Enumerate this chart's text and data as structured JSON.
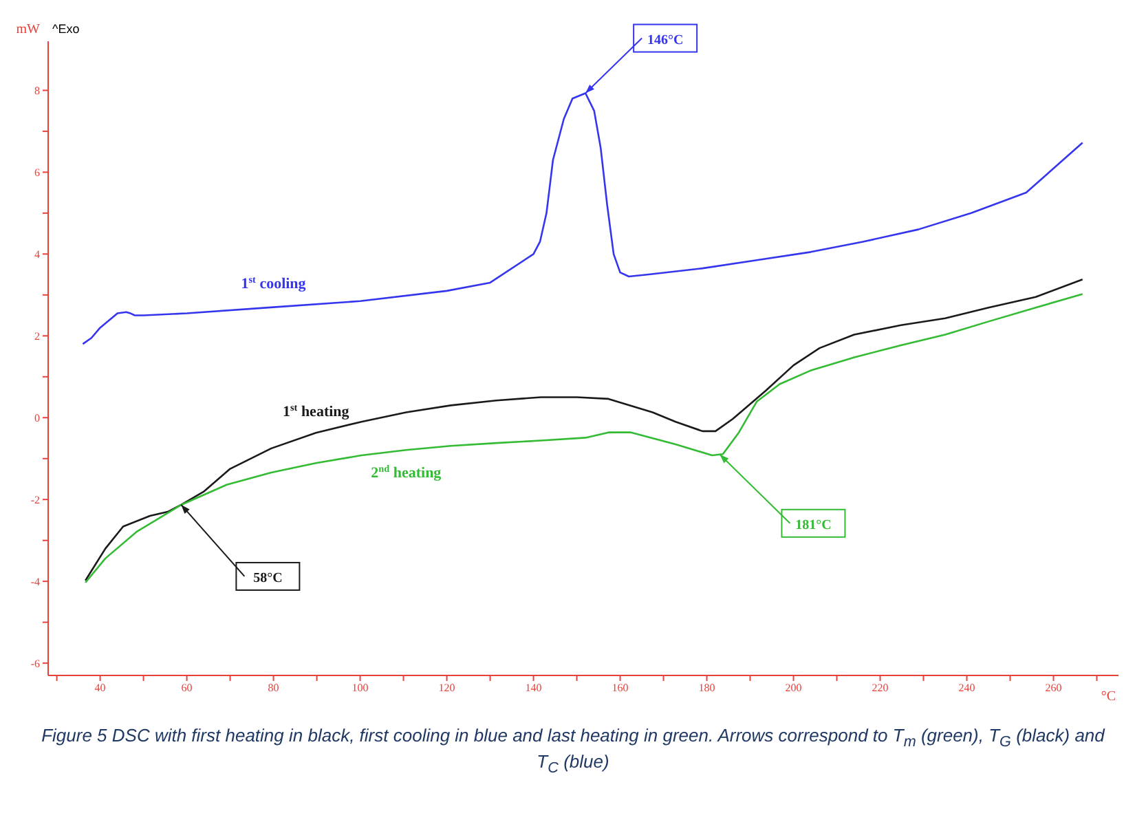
{
  "chart_data": {
    "type": "line",
    "xlabel": "°C",
    "ylabel": "mW",
    "xlim": [
      28,
      275
    ],
    "ylim": [
      -6.3,
      9.2
    ],
    "xticks": [
      {
        "value": 30,
        "label": null
      },
      40,
      {
        "value": 50,
        "label": null
      },
      60,
      {
        "value": 70,
        "label": null
      },
      80,
      {
        "value": 90,
        "label": null
      },
      100,
      {
        "value": 110,
        "label": null
      },
      120,
      {
        "value": 130,
        "label": null
      },
      140,
      {
        "value": 150,
        "label": null
      },
      160,
      {
        "value": 170,
        "label": null
      },
      180,
      {
        "value": 190,
        "label": null
      },
      200,
      {
        "value": 210,
        "label": null
      },
      220,
      {
        "value": 230,
        "label": null
      },
      240,
      {
        "value": 250,
        "label": null
      },
      260,
      {
        "value": 270,
        "label": null
      }
    ],
    "yticks": [
      -6,
      {
        "value": -5,
        "label": null
      },
      -4,
      {
        "value": -3,
        "label": null
      },
      -2,
      {
        "value": -1,
        "label": null
      },
      0,
      {
        "value": 1,
        "label": null
      },
      2,
      {
        "value": 3,
        "label": null
      },
      4,
      {
        "value": 5,
        "label": null
      },
      6,
      {
        "value": 7,
        "label": null
      },
      8
    ],
    "grid": false,
    "legend": false,
    "marker": "none",
    "series": [
      {
        "name": "1$^{st}$ cooling",
        "color": "#3535ee",
        "x": [
          36,
          38,
          40,
          44,
          46,
          47,
          48,
          50,
          60,
          80,
          100,
          120,
          130,
          140,
          141.5,
          143,
          144.5,
          147,
          149,
          152,
          154,
          155.5,
          157,
          158.5,
          160,
          162,
          166.6,
          179,
          191.5,
          204,
          216,
          228.8,
          241,
          253.7,
          266.7
        ],
        "values": [
          1.8,
          1.95,
          2.2,
          2.55,
          2.58,
          2.55,
          2.5,
          2.5,
          2.55,
          2.7,
          2.85,
          3.1,
          3.3,
          4.0,
          4.3,
          5.0,
          6.3,
          7.3,
          7.8,
          7.93,
          7.5,
          6.6,
          5.2,
          4.0,
          3.55,
          3.45,
          3.5,
          3.65,
          3.85,
          4.05,
          4.3,
          4.6,
          5.0,
          5.5,
          6.72
        ]
      },
      {
        "name": "1$^{st}$ heating",
        "color": "#1a1a1a",
        "x": [
          36.6,
          41.2,
          45.3,
          51.5,
          55.6,
          58.7,
          64,
          70,
          79.5,
          89.8,
          100.3,
          110.6,
          120.9,
          131.4,
          141.7,
          150,
          157.3,
          167.5,
          172.8,
          179,
          182,
          186,
          193.6,
          200,
          206,
          214,
          224.8,
          235,
          245,
          255.9,
          266.7
        ],
        "values": [
          -3.98,
          -3.2,
          -2.66,
          -2.4,
          -2.3,
          -2.13,
          -1.8,
          -1.25,
          -0.75,
          -0.37,
          -0.1,
          0.13,
          0.3,
          0.42,
          0.5,
          0.5,
          0.46,
          0.13,
          -0.1,
          -0.33,
          -0.33,
          -0.03,
          0.66,
          1.28,
          1.7,
          2.03,
          2.26,
          2.43,
          2.69,
          2.95,
          3.38
        ]
      },
      {
        "name": "2$^{nd}$ heating",
        "color": "#33bb33",
        "x": [
          36.6,
          41.2,
          48.4,
          58.7,
          69.2,
          79.5,
          89.8,
          100.3,
          110.6,
          120.9,
          131.4,
          141.7,
          152,
          157.3,
          162.5,
          172.8,
          181.2,
          183.7,
          187.4,
          191.5,
          196.8,
          203.9,
          214.2,
          224.8,
          235,
          245.3,
          255.9,
          266.7
        ],
        "values": [
          -4.03,
          -3.44,
          -2.79,
          -2.13,
          -1.64,
          -1.34,
          -1.11,
          -0.92,
          -0.79,
          -0.69,
          -0.62,
          -0.56,
          -0.49,
          -0.36,
          -0.36,
          -0.65,
          -0.92,
          -0.89,
          -0.36,
          0.39,
          0.82,
          1.15,
          1.48,
          1.77,
          2.03,
          2.36,
          2.69,
          3.02
        ]
      }
    ],
    "annotations": [
      "^Exo",
      {
        "text": "146°C",
        "x": 152,
        "y": 7.93
      },
      {
        "text": "58°C",
        "x": 58.7,
        "y": -2.13
      },
      {
        "text": "181°C",
        "x": 183,
        "y": -0.9
      },
      "Figure 5 DSC with first heating in black, first cooling in blue and last heating in green. Arrows correspond to T$_{m}$ (green), T$_{G}$ (black) and T$_{C}$ (blue)"
    ]
  }
}
